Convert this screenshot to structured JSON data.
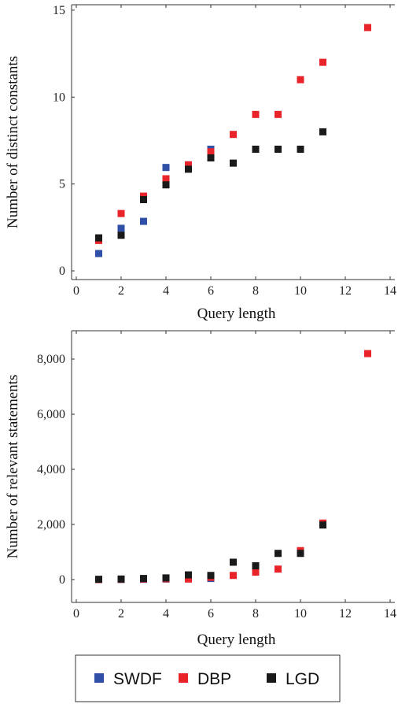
{
  "chart_data": [
    {
      "type": "scatter",
      "title": "",
      "xlabel": "Query length",
      "ylabel": "Number of distinct constants",
      "xlim": [
        0,
        14
      ],
      "ylim": [
        0,
        15
      ],
      "x_ticks": [
        "0",
        "2",
        "4",
        "6",
        "8",
        "10",
        "12",
        "14"
      ],
      "y_ticks": [
        "0",
        "5",
        "10",
        "15"
      ],
      "grid": false,
      "series": [
        {
          "name": "SWDF",
          "color": "#3050a8",
          "points": [
            [
              1,
              1.0
            ],
            [
              2,
              2.45
            ],
            [
              3,
              2.85
            ],
            [
              4,
              5.95
            ],
            [
              5,
              6.1
            ],
            [
              6,
              7.0
            ]
          ]
        },
        {
          "name": "DBP",
          "color": "#e8242a",
          "points": [
            [
              1,
              1.75
            ],
            [
              2,
              3.3
            ],
            [
              3,
              4.3
            ],
            [
              4,
              5.3
            ],
            [
              5,
              6.1
            ],
            [
              6,
              6.85
            ],
            [
              7,
              7.85
            ],
            [
              8,
              9.0
            ],
            [
              9,
              9.0
            ],
            [
              10,
              11.0
            ],
            [
              11,
              12.0
            ],
            [
              13,
              14.0
            ]
          ]
        },
        {
          "name": "LGD",
          "color": "#1a1a1a",
          "points": [
            [
              1,
              1.9
            ],
            [
              2,
              2.05
            ],
            [
              3,
              4.1
            ],
            [
              4,
              4.95
            ],
            [
              5,
              5.85
            ],
            [
              6,
              6.5
            ],
            [
              7,
              6.2
            ],
            [
              8,
              7.0
            ],
            [
              9,
              7.0
            ],
            [
              10,
              7.0
            ],
            [
              11,
              8.0
            ]
          ]
        }
      ]
    },
    {
      "type": "scatter",
      "title": "",
      "xlabel": "Query length",
      "ylabel": "Number of relevant statements",
      "xlim": [
        0,
        14
      ],
      "ylim": [
        0,
        8000
      ],
      "x_ticks": [
        "0",
        "2",
        "4",
        "6",
        "8",
        "10",
        "12",
        "14"
      ],
      "y_ticks": [
        "0",
        "2,000",
        "4,000",
        "6,000",
        "8,000"
      ],
      "grid": false,
      "series": [
        {
          "name": "SWDF",
          "color": "#3050a8",
          "points": [
            [
              1,
              0
            ],
            [
              2,
              5
            ],
            [
              3,
              10
            ],
            [
              4,
              20
            ],
            [
              5,
              30
            ],
            [
              6,
              40
            ]
          ]
        },
        {
          "name": "DBP",
          "color": "#e8242a",
          "points": [
            [
              1,
              0
            ],
            [
              2,
              10
            ],
            [
              3,
              20
            ],
            [
              4,
              30
            ],
            [
              5,
              20
            ],
            [
              6,
              80
            ],
            [
              7,
              150
            ],
            [
              8,
              270
            ],
            [
              9,
              380
            ],
            [
              10,
              1050
            ],
            [
              11,
              2050
            ],
            [
              13,
              8200
            ]
          ]
        },
        {
          "name": "LGD",
          "color": "#1a1a1a",
          "points": [
            [
              1,
              10
            ],
            [
              2,
              20
            ],
            [
              3,
              40
            ],
            [
              4,
              60
            ],
            [
              5,
              170
            ],
            [
              6,
              150
            ],
            [
              7,
              630
            ],
            [
              8,
              500
            ],
            [
              9,
              950
            ],
            [
              10,
              950
            ],
            [
              11,
              1980
            ]
          ]
        }
      ]
    }
  ],
  "legend": {
    "placement": "bottom",
    "entries": [
      "SWDF",
      "DBP",
      "LGD"
    ]
  }
}
